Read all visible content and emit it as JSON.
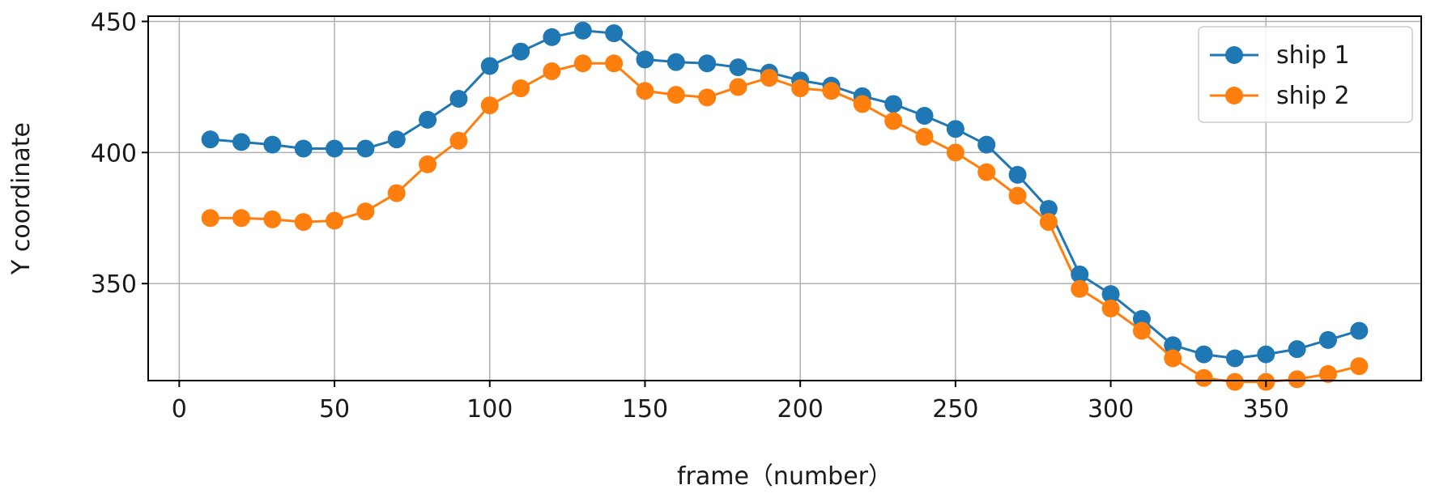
{
  "chart_data": {
    "type": "line",
    "title": "",
    "xlabel": "frame（number）",
    "ylabel": "Y coordinate",
    "xlim": [
      -10,
      400
    ],
    "ylim": [
      313,
      452
    ],
    "xticks": [
      0,
      50,
      100,
      150,
      200,
      250,
      300,
      350
    ],
    "yticks": [
      350,
      400,
      450
    ],
    "grid": true,
    "legend_position": "top-right",
    "x": [
      10,
      20,
      30,
      40,
      50,
      60,
      70,
      80,
      90,
      100,
      110,
      120,
      130,
      140,
      150,
      160,
      170,
      180,
      190,
      200,
      210,
      220,
      230,
      240,
      250,
      260,
      270,
      280,
      290,
      300,
      310,
      320,
      330,
      340,
      350,
      360,
      370,
      380
    ],
    "series": [
      {
        "name": "ship 1",
        "color": "#1f77b4",
        "marker": "circle",
        "values": [
          405,
          404,
          403,
          401.5,
          401.5,
          401.5,
          405,
          412.5,
          420.5,
          433,
          438.5,
          444,
          446.5,
          445.5,
          435.5,
          434.5,
          434,
          432.5,
          430.5,
          427.5,
          425.5,
          421.5,
          418.5,
          414,
          409,
          403,
          391.5,
          378.5,
          353.5,
          346,
          336.5,
          326.5,
          323,
          321.5,
          323,
          325,
          328.5,
          332
        ]
      },
      {
        "name": "ship 2",
        "color": "#ff7f0e",
        "marker": "circle",
        "values": [
          375,
          375,
          374.5,
          373.5,
          374,
          377.5,
          384.5,
          395.5,
          404.5,
          418,
          424.5,
          431,
          434,
          434,
          423.5,
          422,
          421,
          425,
          428.5,
          424.5,
          423.5,
          418.5,
          412,
          406,
          400,
          392.5,
          383.5,
          373.5,
          348,
          340.5,
          332,
          321.5,
          314,
          312.5,
          312.5,
          313.5,
          315.5,
          318.5
        ]
      }
    ]
  }
}
